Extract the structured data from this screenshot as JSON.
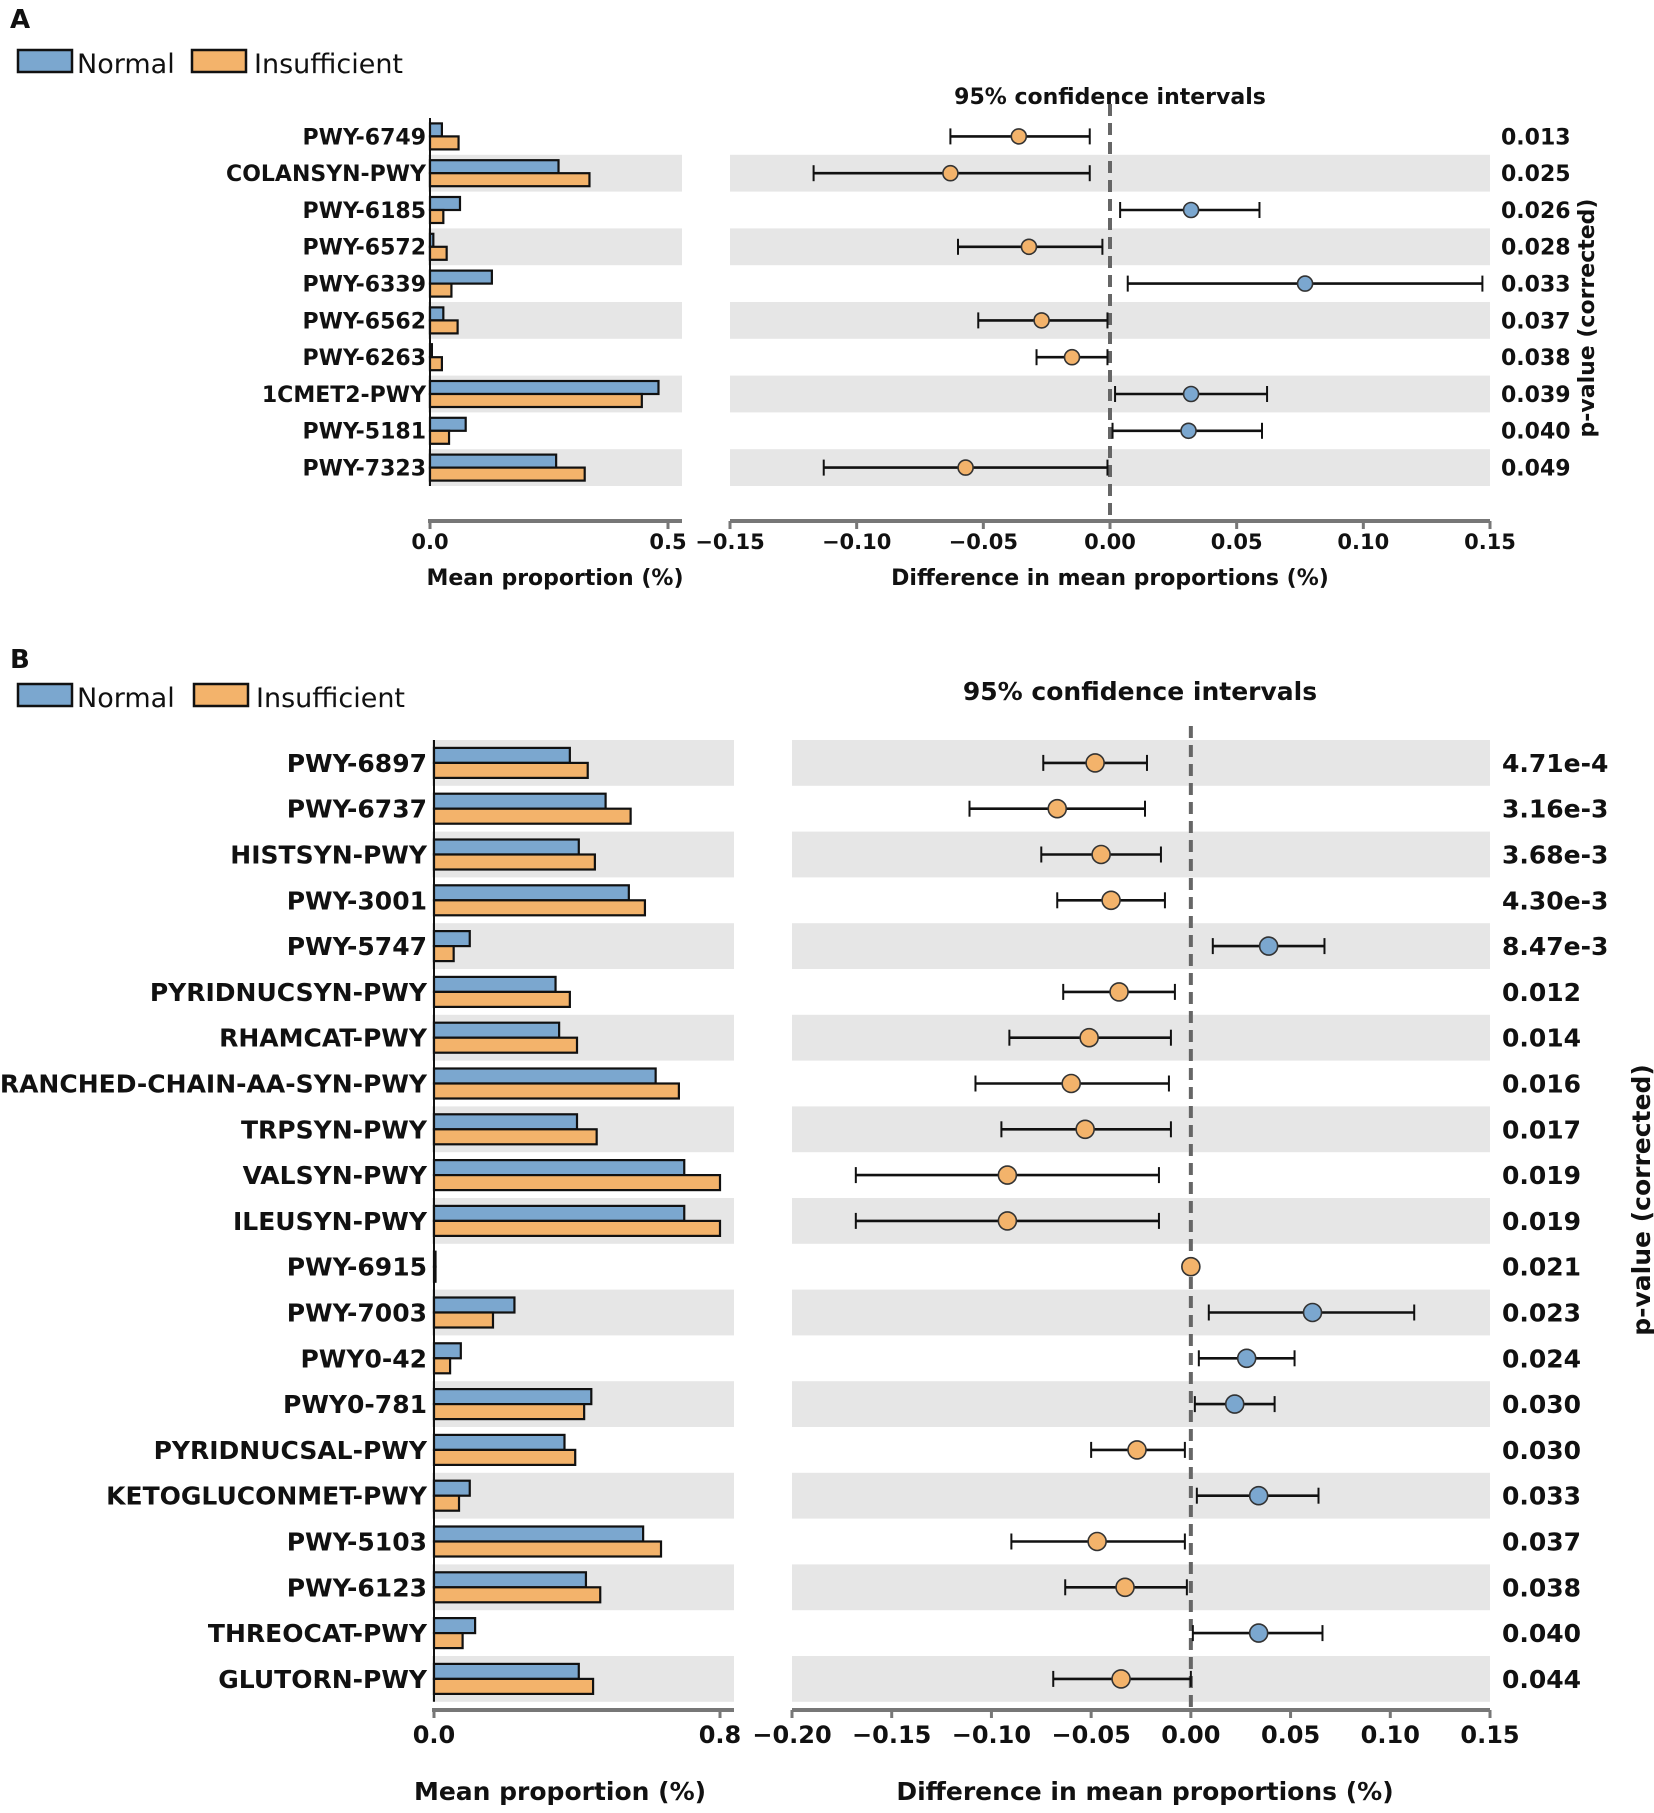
{
  "colors": {
    "normal": "#7ba7cf",
    "insufficient": "#f3b36b",
    "stripe": "#e6e6e6",
    "axis": "#777777",
    "zero_line": "#666666"
  },
  "chart_data": [
    {
      "type": "bar",
      "panel": "A",
      "legend": [
        "Normal",
        "Insufficient"
      ],
      "ci_title": "95% confidence intervals",
      "bar_xlabel": "Mean proportion (%)",
      "ci_xlabel": "Difference in mean proportions (%)",
      "pval_label": "p-value (corrected)",
      "bar_xlim": [
        0,
        0.5
      ],
      "bar_ticks": [
        "0.0",
        "0.5"
      ],
      "ci_xlim": [
        -0.15,
        0.15
      ],
      "ci_ticks": [
        "−0.15",
        "−0.10",
        "−0.05",
        "0.00",
        "0.05",
        "0.10",
        "0.15"
      ],
      "categories": [
        "PWY-6749",
        "COLANSYN-PWY",
        "PWY-6185",
        "PWY-6572",
        "PWY-6339",
        "PWY-6562",
        "PWY-6263",
        "1CMET2-PWY",
        "PWY-5181",
        "PWY-7323"
      ],
      "series": [
        {
          "name": "Normal",
          "values": [
            0.025,
            0.27,
            0.063,
            0.007,
            0.13,
            0.028,
            0.004,
            0.48,
            0.075,
            0.265
          ]
        },
        {
          "name": "Insufficient",
          "values": [
            0.06,
            0.335,
            0.028,
            0.035,
            0.045,
            0.058,
            0.025,
            0.445,
            0.04,
            0.325
          ]
        }
      ],
      "ci": [
        {
          "mean": -0.036,
          "low": -0.063,
          "high": -0.008,
          "higher": "Insufficient"
        },
        {
          "mean": -0.063,
          "low": -0.117,
          "high": -0.008,
          "higher": "Insufficient"
        },
        {
          "mean": 0.032,
          "low": 0.004,
          "high": 0.059,
          "higher": "Normal"
        },
        {
          "mean": -0.032,
          "low": -0.06,
          "high": -0.003,
          "higher": "Insufficient"
        },
        {
          "mean": 0.077,
          "low": 0.007,
          "high": 0.147,
          "higher": "Normal"
        },
        {
          "mean": -0.027,
          "low": -0.052,
          "high": -0.001,
          "higher": "Insufficient"
        },
        {
          "mean": -0.015,
          "low": -0.029,
          "high": -0.001,
          "higher": "Insufficient"
        },
        {
          "mean": 0.032,
          "low": 0.002,
          "high": 0.062,
          "higher": "Normal"
        },
        {
          "mean": 0.031,
          "low": 0.001,
          "high": 0.06,
          "higher": "Normal"
        },
        {
          "mean": -0.057,
          "low": -0.113,
          "high": -0.001,
          "higher": "Insufficient"
        }
      ],
      "p_values": [
        "0.013",
        "0.025",
        "0.026",
        "0.028",
        "0.033",
        "0.037",
        "0.038",
        "0.039",
        "0.040",
        "0.049"
      ]
    },
    {
      "type": "bar",
      "panel": "B",
      "legend": [
        "Normal",
        "Insufficient"
      ],
      "ci_title": "95% confidence intervals",
      "bar_xlabel": "Mean proportion (%)",
      "ci_xlabel": "Difference in mean proportions (%)",
      "pval_label": "p-value (corrected)",
      "bar_xlim": [
        0,
        0.8
      ],
      "bar_ticks": [
        "0.0",
        "0.8"
      ],
      "ci_xlim": [
        -0.2,
        0.15
      ],
      "ci_ticks": [
        "−0.20",
        "−0.15",
        "−0.10",
        "−0.05",
        "0.00",
        "0.05",
        "0.10",
        "0.15"
      ],
      "categories": [
        "PWY-6897",
        "PWY-6737",
        "HISTSYN-PWY",
        "PWY-3001",
        "PWY-5747",
        "PYRIDNUCSYN-PWY",
        "RHAMCAT-PWY",
        "BRANCHED-CHAIN-AA-SYN-PWY",
        "TRPSYN-PWY",
        "VALSYN-PWY",
        "ILEUSYN-PWY",
        "PWY-6915",
        "PWY-7003",
        "PWY0-42",
        "PWY0-781",
        "PYRIDNUCSAL-PWY",
        "KETOGLUCONMET-PWY",
        "PWY-5103",
        "PWY-6123",
        "THREOCAT-PWY",
        "GLUTORN-PWY"
      ],
      "series": [
        {
          "name": "Normal",
          "values": [
            0.38,
            0.48,
            0.405,
            0.545,
            0.1,
            0.34,
            0.35,
            0.62,
            0.4,
            0.7,
            0.7,
            0.003,
            0.225,
            0.075,
            0.44,
            0.365,
            0.1,
            0.585,
            0.425,
            0.115,
            0.405
          ]
        },
        {
          "name": "Insufficient",
          "values": [
            0.43,
            0.55,
            0.45,
            0.59,
            0.055,
            0.38,
            0.4,
            0.685,
            0.455,
            0.8,
            0.8,
            0.003,
            0.165,
            0.045,
            0.42,
            0.395,
            0.07,
            0.635,
            0.465,
            0.08,
            0.445
          ]
        }
      ],
      "ci": [
        {
          "mean": -0.048,
          "low": -0.074,
          "high": -0.022,
          "higher": "Insufficient"
        },
        {
          "mean": -0.067,
          "low": -0.111,
          "high": -0.023,
          "higher": "Insufficient"
        },
        {
          "mean": -0.045,
          "low": -0.075,
          "high": -0.015,
          "higher": "Insufficient"
        },
        {
          "mean": -0.04,
          "low": -0.067,
          "high": -0.013,
          "higher": "Insufficient"
        },
        {
          "mean": 0.039,
          "low": 0.011,
          "high": 0.067,
          "higher": "Normal"
        },
        {
          "mean": -0.036,
          "low": -0.064,
          "high": -0.008,
          "higher": "Insufficient"
        },
        {
          "mean": -0.051,
          "low": -0.091,
          "high": -0.01,
          "higher": "Insufficient"
        },
        {
          "mean": -0.06,
          "low": -0.108,
          "high": -0.011,
          "higher": "Insufficient"
        },
        {
          "mean": -0.053,
          "low": -0.095,
          "high": -0.01,
          "higher": "Insufficient"
        },
        {
          "mean": -0.092,
          "low": -0.168,
          "high": -0.016,
          "higher": "Insufficient"
        },
        {
          "mean": -0.092,
          "low": -0.168,
          "high": -0.016,
          "higher": "Insufficient"
        },
        {
          "mean": 0.0,
          "low": 0.0,
          "high": 0.0,
          "higher": "Insufficient"
        },
        {
          "mean": 0.061,
          "low": 0.009,
          "high": 0.112,
          "higher": "Normal"
        },
        {
          "mean": 0.028,
          "low": 0.004,
          "high": 0.052,
          "higher": "Normal"
        },
        {
          "mean": 0.022,
          "low": 0.002,
          "high": 0.042,
          "higher": "Normal"
        },
        {
          "mean": -0.027,
          "low": -0.05,
          "high": -0.003,
          "higher": "Insufficient"
        },
        {
          "mean": 0.034,
          "low": 0.003,
          "high": 0.064,
          "higher": "Normal"
        },
        {
          "mean": -0.047,
          "low": -0.09,
          "high": -0.003,
          "higher": "Insufficient"
        },
        {
          "mean": -0.033,
          "low": -0.063,
          "high": -0.002,
          "higher": "Insufficient"
        },
        {
          "mean": 0.034,
          "low": 0.001,
          "high": 0.066,
          "higher": "Normal"
        },
        {
          "mean": -0.035,
          "low": -0.069,
          "high": 0.0,
          "higher": "Insufficient"
        }
      ],
      "p_values": [
        "4.71e-4",
        "3.16e-3",
        "3.68e-3",
        "4.30e-3",
        "8.47e-3",
        "0.012",
        "0.014",
        "0.016",
        "0.017",
        "0.019",
        "0.019",
        "0.021",
        "0.023",
        "0.024",
        "0.030",
        "0.030",
        "0.033",
        "0.037",
        "0.038",
        "0.040",
        "0.044"
      ]
    }
  ]
}
